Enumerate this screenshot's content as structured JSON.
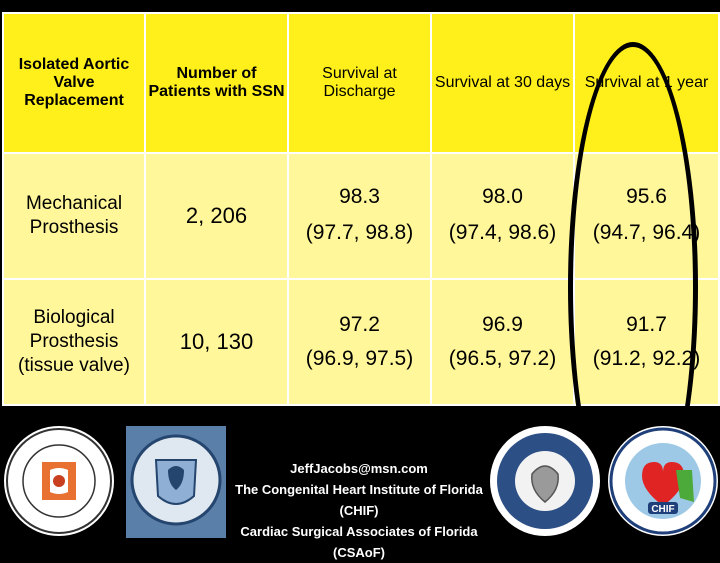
{
  "table": {
    "headers": [
      "Isolated Aortic Valve Replacement",
      "Number of Patients with SSN",
      "Survival at Discharge",
      "Survival at 30 days",
      "Survival at 1 year"
    ],
    "rows": [
      {
        "label": "Mechanical Prosthesis",
        "count": "2, 206",
        "discharge": [
          "98.3",
          "(97.7, 98.8)"
        ],
        "day30": [
          "98.0",
          "(97.4, 98.6)"
        ],
        "year1": [
          "95.6",
          "(94.7, 96.4)"
        ]
      },
      {
        "label": "Biological Prosthesis (tissue valve)",
        "count": "10, 130",
        "discharge": [
          "97.2",
          "(96.9, 97.5)"
        ],
        "day30": [
          "96.9",
          "(96.5, 97.2)"
        ],
        "year1": [
          "91.7",
          "(91.2, 92.2)"
        ]
      }
    ]
  },
  "footer": {
    "email": "JeffJacobs@msn.com",
    "line1": "The Congenital Heart Institute of Florida (CHIF)",
    "line2": "Cardiac Surgical Associates of Florida (CSAoF)",
    "logo4_text": "CHIF"
  },
  "colors": {
    "header_bg": "#ffef1a",
    "body_bg": "#fff79a"
  }
}
